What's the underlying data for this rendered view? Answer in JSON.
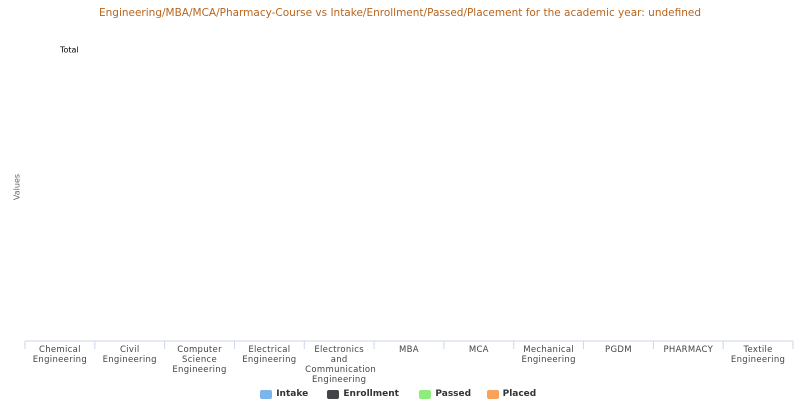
{
  "chart_data": {
    "type": "bar",
    "title": "Engineering/MBA/MCA/Pharmacy-Course vs Intake/Enrollment/Passed/Placement for the academic year: undefined",
    "annotation": "Total",
    "y_label": "Values",
    "categories": [
      "Chemical Engineering",
      "Civil Engineering",
      "Computer Science Engineering",
      "Electrical Engineering",
      "Electronics and Communication Engineering",
      "MBA",
      "MCA",
      "Mechanical Engineering",
      "PGDM",
      "PHARMACY",
      "Textile Engineering"
    ],
    "series": [
      {
        "name": "Intake",
        "color": "#7cb5ec"
      },
      {
        "name": "Enrollment",
        "color": "#434348"
      },
      {
        "name": "Passed",
        "color": "#90ed7d"
      },
      {
        "name": "Placed",
        "color": "#f7a35c"
      }
    ]
  }
}
